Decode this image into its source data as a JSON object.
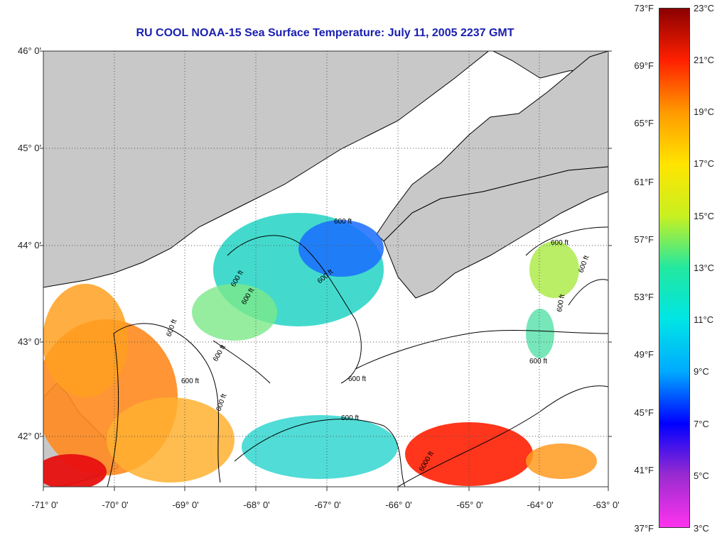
{
  "title": "RU COOL  NOAA-15  Sea Surface Temperature:  July 11, 2005 2237 GMT",
  "latitude_labels": [
    "46° 0'",
    "45° 0'",
    "44° 0'",
    "43° 0'",
    "42° 0'"
  ],
  "longitude_labels": [
    "-71° 0'",
    "-70° 0'",
    "-69° 0'",
    "-68° 0'",
    "-67° 0'",
    "-66° 0'",
    "-65° 0'",
    "-64° 0'",
    "-63° 0'"
  ],
  "colorbar": {
    "fahrenheit_labels": [
      "73°F",
      "69°F",
      "65°F",
      "61°F",
      "57°F",
      "53°F",
      "49°F",
      "45°F",
      "41°F",
      "37°F"
    ],
    "celsius_labels": [
      "23°C",
      "21°C",
      "19°C",
      "17°C",
      "15°C",
      "13°C",
      "11°C",
      "9°C",
      "7°C",
      "5°C",
      "3°C"
    ],
    "colors": [
      "#ff33ee",
      "#9a2bd0",
      "#0000ff",
      "#00aaff",
      "#00e5e5",
      "#22e8a0",
      "#c8f020",
      "#ffe400",
      "#ff9a00",
      "#ff2000",
      "#8a0000"
    ]
  },
  "depth_contour_labels": [
    "600 ft",
    "600 ft",
    "600 ft",
    "600 ft",
    "600 ft",
    "600 ft",
    "600 ft",
    "600 ft",
    "600 ft",
    "600 ft",
    "600 ft",
    "600 ft",
    "600 ft",
    "600 ft",
    "6000 ft"
  ],
  "colors": {
    "land": "#c8c8c8",
    "title": "#1a20b0"
  }
}
